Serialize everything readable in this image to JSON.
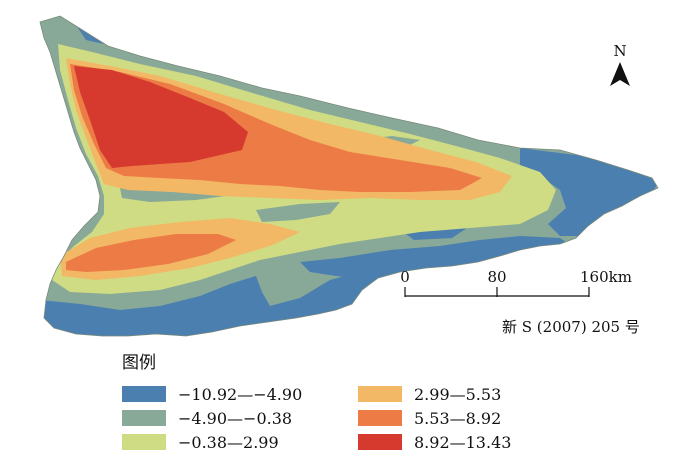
{
  "north_label": "N",
  "scale": {
    "ticks": [
      "0",
      "80",
      "160km"
    ]
  },
  "approval_number": "新 S (2007) 205 号",
  "legend": {
    "title": "图例",
    "items": [
      {
        "label": "−10.92—−4.90",
        "color": "#4a7fb0"
      },
      {
        "label": "−4.90—−0.38",
        "color": "#88a898"
      },
      {
        "label": "−0.38—2.99",
        "color": "#cfdc84"
      },
      {
        "label": "2.99—5.53",
        "color": "#f2b865"
      },
      {
        "label": "5.53—8.92",
        "color": "#ec7b45"
      },
      {
        "label": "8.92—13.43",
        "color": "#d63a2e"
      }
    ]
  }
}
